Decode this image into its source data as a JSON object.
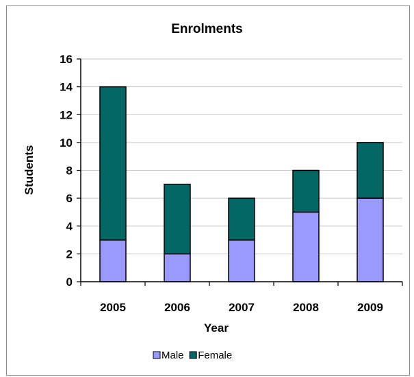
{
  "chart_data": {
    "type": "bar",
    "stacked": true,
    "title": "Enrolments",
    "xlabel": "Year",
    "ylabel": "Students",
    "categories": [
      "2005",
      "2006",
      "2007",
      "2008",
      "2009"
    ],
    "series": [
      {
        "name": "Male",
        "values": [
          3,
          2,
          3,
          5,
          6
        ],
        "color": "#9999ff"
      },
      {
        "name": "Female",
        "values": [
          11,
          5,
          3,
          3,
          4
        ],
        "color": "#006666"
      }
    ],
    "ylim": [
      0,
      16
    ],
    "yticks": [
      0,
      2,
      4,
      6,
      8,
      10,
      12,
      14,
      16
    ],
    "grid": true,
    "legend": "bottom"
  }
}
